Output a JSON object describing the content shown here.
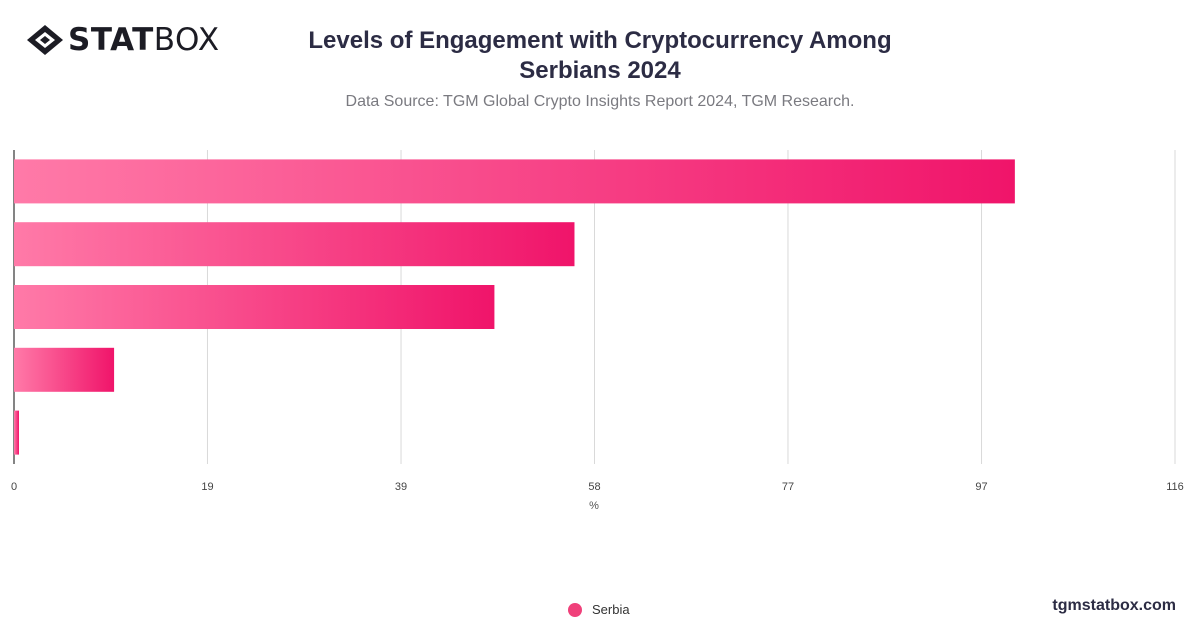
{
  "brand": {
    "logo_bold": "STAT",
    "logo_light": "BOX",
    "site": "tgmstatbox.com"
  },
  "header": {
    "title_line1": "Levels of Engagement with Cryptocurrency Among",
    "title_line2": "Serbians 2024",
    "subtitle": "Data Source: TGM Global Crypto Insights Report 2024, TGM Research."
  },
  "colors": {
    "bar_start": "#ff7aa8",
    "bar_end": "#f0146a",
    "grid": "#d9d9d9",
    "axis": "#333333"
  },
  "chart_data": {
    "type": "bar",
    "orientation": "horizontal",
    "categories": [
      "",
      "",
      "",
      "",
      ""
    ],
    "series": [
      {
        "name": "Serbia",
        "values": [
          100,
          56,
          48,
          10,
          0.5
        ]
      }
    ],
    "xlabel": "%",
    "ylabel": "",
    "xlim": [
      0,
      116
    ],
    "xticks": [
      "0",
      "19",
      "39",
      "58",
      "77",
      "97",
      "116"
    ],
    "xtick_values": [
      0,
      19.33,
      38.67,
      58,
      77.33,
      96.67,
      116
    ],
    "grid": true,
    "legend_position": "bottom"
  }
}
